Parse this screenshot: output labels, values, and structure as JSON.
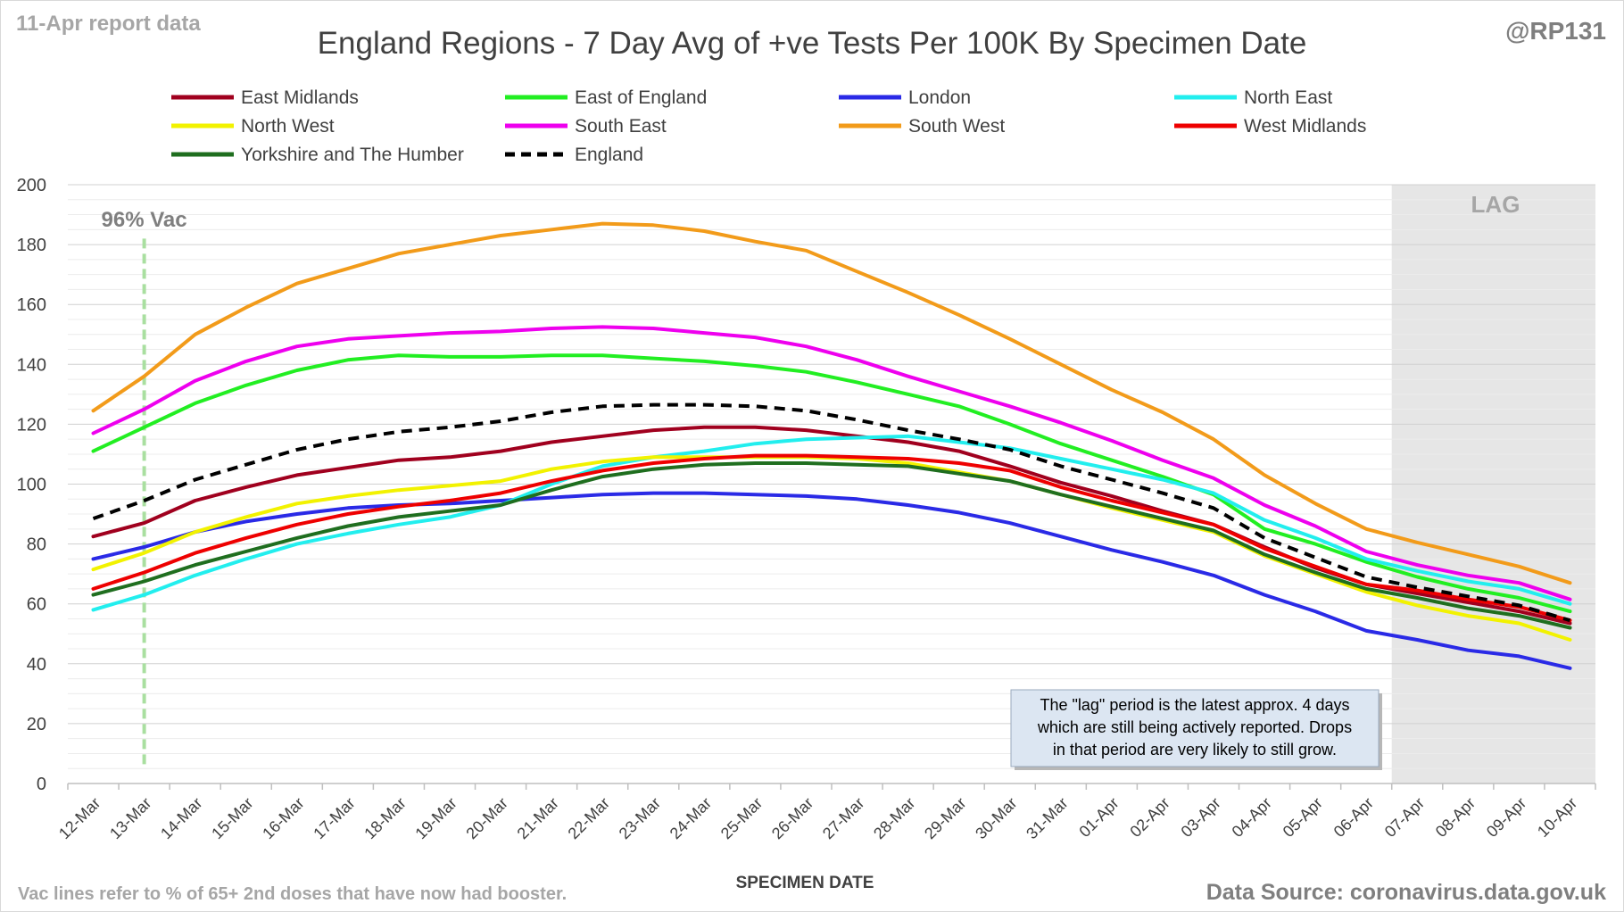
{
  "header": {
    "report_date": "11-Apr report data",
    "handle": "@RP131"
  },
  "footer": {
    "left_note": "Vac lines refer to % of 65+ 2nd doses that have now had booster.",
    "source": "Data Source: coronavirus.data.gov.uk"
  },
  "annotations": {
    "vac_label": "96% Vac",
    "vac_at": "13-Mar",
    "lag_label": "LAG",
    "lag_from": "06-Apr",
    "note_lines": [
      "The \"lag\" period is the latest approx. 4 days",
      "which are still being actively reported.  Drops",
      "in that period are very likely to still grow."
    ]
  },
  "colors": {
    "vac_line": "#a9dfa0",
    "lag_shade": "#e6e6e6",
    "note_bg": "#dce6f2",
    "note_border": "#9aa9bd",
    "grid": "#e0e0e0"
  },
  "chart_data": {
    "type": "line",
    "title": "England Regions - 7 Day Avg of +ve Tests Per 100K By Specimen Date",
    "xlabel": "SPECIMEN DATE",
    "ylabel": "",
    "ylim": [
      0,
      200
    ],
    "yticks": [
      0,
      20,
      40,
      60,
      80,
      100,
      120,
      140,
      160,
      180,
      200
    ],
    "grid": true,
    "legend_position": "top",
    "categories": [
      "12-Mar",
      "13-Mar",
      "14-Mar",
      "15-Mar",
      "16-Mar",
      "17-Mar",
      "18-Mar",
      "19-Mar",
      "20-Mar",
      "21-Mar",
      "22-Mar",
      "23-Mar",
      "24-Mar",
      "25-Mar",
      "26-Mar",
      "27-Mar",
      "28-Mar",
      "29-Mar",
      "30-Mar",
      "31-Mar",
      "01-Apr",
      "02-Apr",
      "03-Apr",
      "04-Apr",
      "05-Apr",
      "06-Apr",
      "07-Apr",
      "08-Apr",
      "09-Apr",
      "10-Apr"
    ],
    "series": [
      {
        "name": "East Midlands",
        "color": "#a0001e",
        "dash": false,
        "values": [
          82.5,
          87,
          94.5,
          99,
          103,
          105.5,
          108,
          109,
          111,
          114,
          116,
          118,
          119,
          119,
          118,
          116,
          114,
          111,
          106,
          100.5,
          96,
          91,
          86.5,
          79,
          72,
          66.5,
          63.5,
          60.5,
          57.5,
          53.5
        ]
      },
      {
        "name": "East of England",
        "color": "#22ee22",
        "dash": false,
        "values": [
          111,
          119,
          127,
          133,
          138,
          141.5,
          143,
          142.5,
          142.5,
          143,
          143,
          142,
          141,
          139.5,
          137.5,
          134,
          130,
          126,
          120,
          113.5,
          108,
          102.5,
          96.5,
          85,
          80,
          74,
          69,
          65,
          62,
          57.5
        ]
      },
      {
        "name": "London",
        "color": "#2a2ae6",
        "dash": false,
        "values": [
          75,
          79,
          84,
          87.5,
          90,
          92,
          93,
          93.5,
          94.5,
          95.5,
          96.5,
          97,
          97,
          96.5,
          96,
          95,
          93,
          90.5,
          87,
          82.5,
          78,
          74,
          69.5,
          63,
          57.5,
          51,
          48,
          44.5,
          42.5,
          38.5
        ]
      },
      {
        "name": "North East",
        "color": "#22eeee",
        "dash": false,
        "values": [
          58,
          63,
          69.5,
          75,
          80,
          83.5,
          86.5,
          89,
          93,
          100,
          106,
          109,
          111,
          113.5,
          115,
          115.5,
          116,
          114,
          112,
          108.5,
          105,
          101.5,
          97,
          88,
          82,
          75,
          71,
          67.5,
          65,
          60
        ]
      },
      {
        "name": "North West",
        "color": "#f2f200",
        "dash": false,
        "values": [
          71.5,
          77,
          84,
          89,
          93.5,
          96,
          98,
          99.5,
          101,
          105,
          107.5,
          109,
          109,
          109,
          109,
          108.5,
          107,
          104,
          101,
          96.5,
          92,
          88,
          84,
          76,
          70,
          64,
          59.5,
          56,
          53.5,
          48
        ]
      },
      {
        "name": "South East",
        "color": "#ee00ee",
        "dash": false,
        "values": [
          117,
          125,
          134.5,
          141,
          146,
          148.5,
          149.5,
          150.5,
          151,
          152,
          152.5,
          152,
          150.5,
          149,
          146,
          141.5,
          136,
          131,
          126,
          120.5,
          114.5,
          108,
          102,
          93,
          86,
          77.5,
          73,
          69.5,
          67,
          61.5
        ]
      },
      {
        "name": "South West",
        "color": "#f29b1a",
        "dash": false,
        "values": [
          124.5,
          136,
          150,
          159,
          167,
          172,
          177,
          180,
          183,
          185,
          187,
          186.5,
          184.5,
          181,
          178,
          171,
          164,
          156.5,
          148.5,
          140,
          131.5,
          124,
          115,
          103,
          93.5,
          85,
          80.5,
          76.5,
          72.5,
          67
        ]
      },
      {
        "name": "West Midlands",
        "color": "#ee0000",
        "dash": false,
        "values": [
          65,
          70.5,
          77,
          82,
          86.5,
          90,
          92.5,
          94.5,
          97,
          101,
          104.5,
          107,
          108.5,
          109.5,
          109.5,
          109,
          108.5,
          107,
          104.5,
          99,
          94.5,
          90.5,
          86.5,
          78.5,
          72.5,
          66.5,
          64.5,
          61.5,
          59,
          54.5
        ]
      },
      {
        "name": "Yorkshire and The Humber",
        "color": "#1f6e1f",
        "dash": false,
        "values": [
          63,
          67.5,
          73,
          77.5,
          82,
          86,
          89,
          91,
          93,
          98,
          102.5,
          105,
          106.5,
          107,
          107,
          106.5,
          106,
          103.5,
          101,
          96.5,
          92.5,
          88.5,
          84.5,
          76.5,
          70.5,
          65,
          62,
          58.5,
          56,
          52
        ]
      },
      {
        "name": "England",
        "color": "#000000",
        "dash": true,
        "values": [
          88.5,
          94.5,
          101.5,
          106.5,
          111.5,
          115,
          117.5,
          119,
          121,
          124,
          126,
          126.5,
          126.5,
          126,
          124.5,
          121.5,
          118,
          115,
          111.5,
          106,
          101.5,
          97,
          92,
          82,
          75.5,
          69,
          65.5,
          62.5,
          59.5,
          54.5
        ]
      }
    ]
  }
}
